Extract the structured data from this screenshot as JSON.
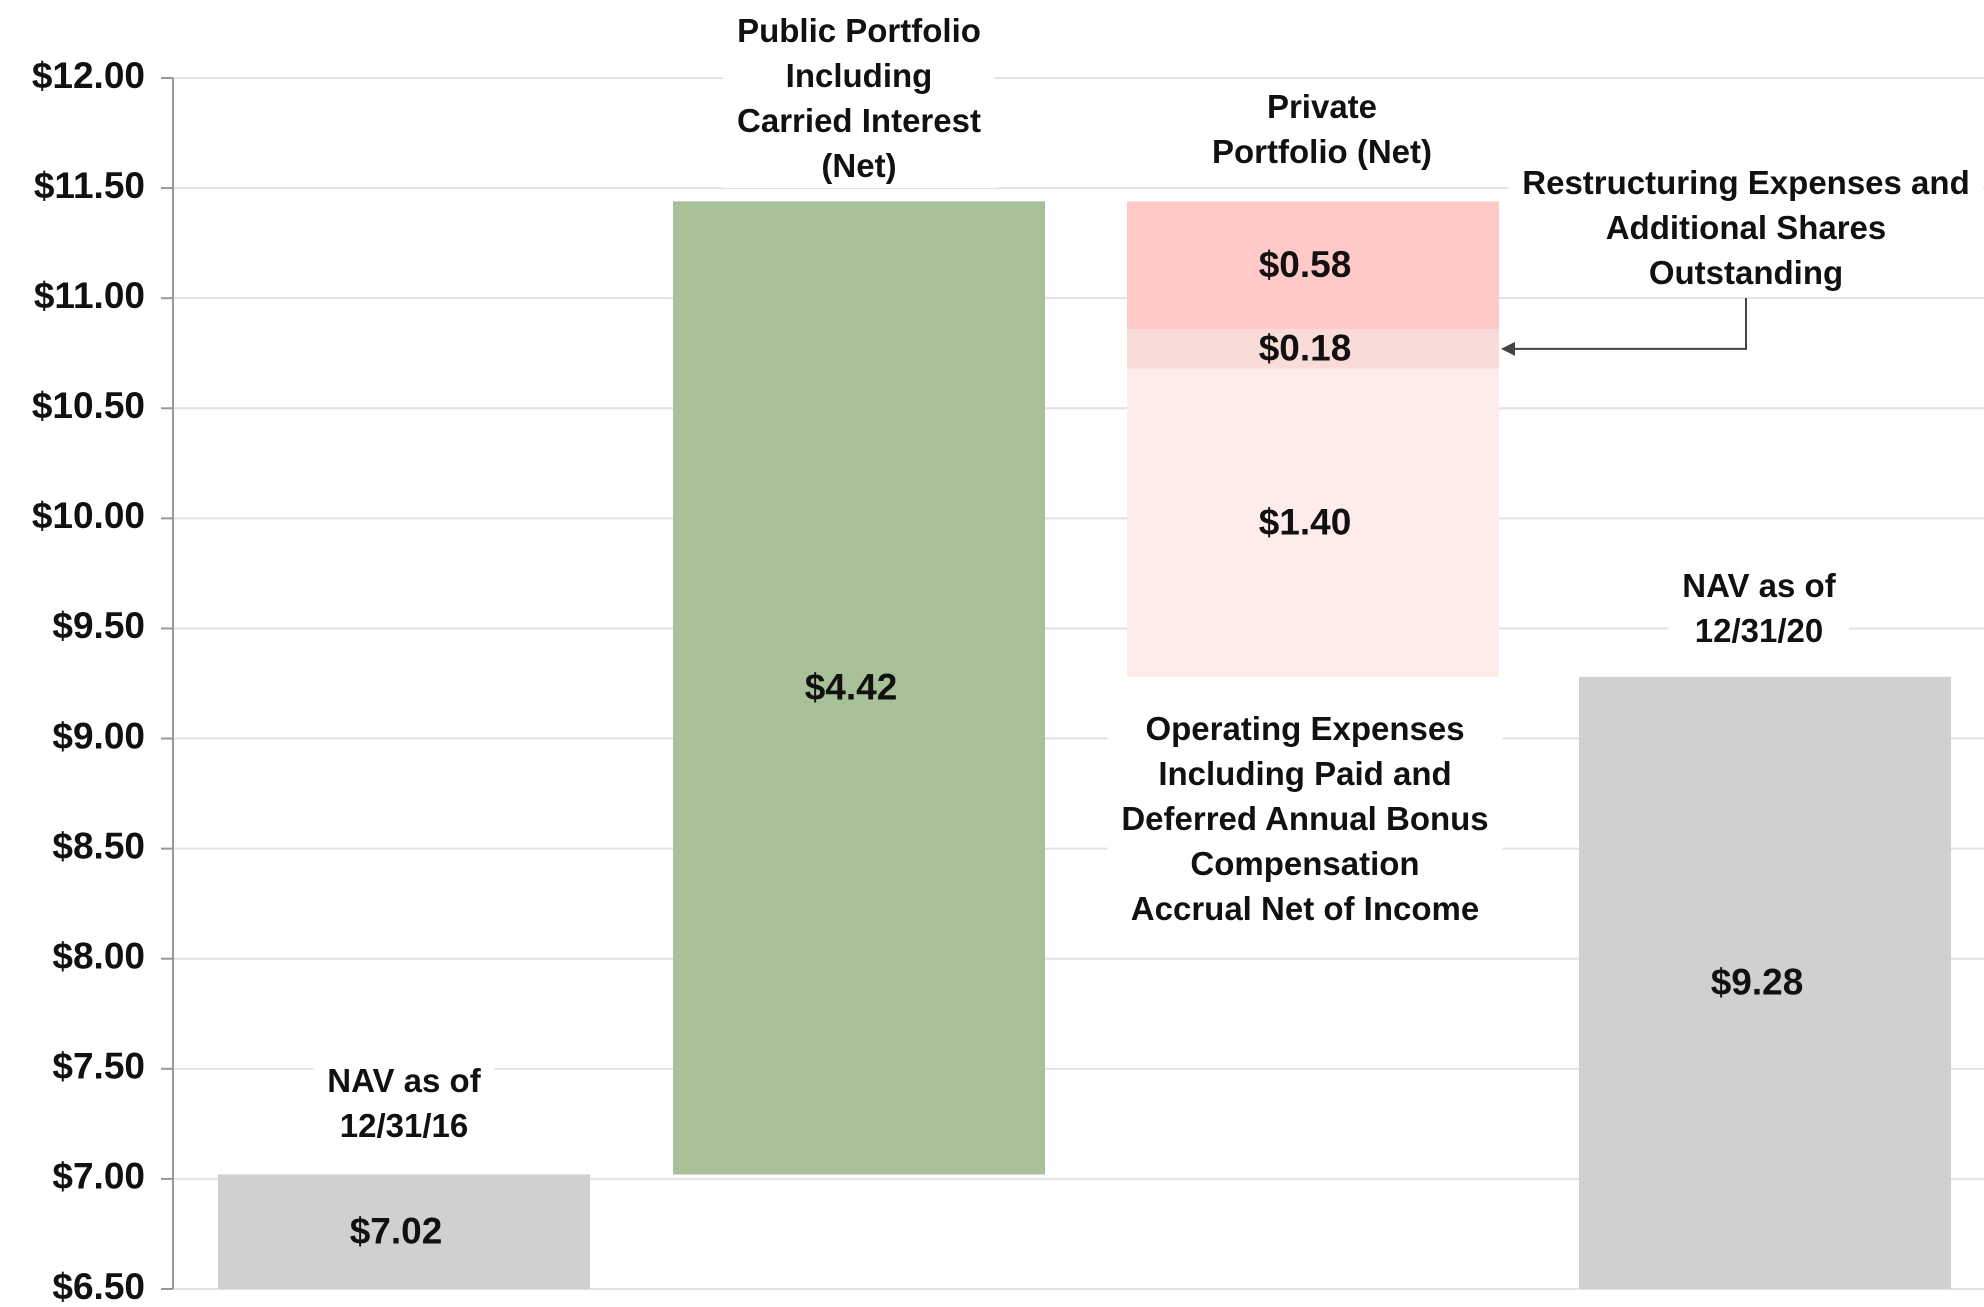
{
  "chart_data": {
    "type": "waterfall",
    "categories": [
      "NAV as of\n12/31/16",
      "Public Portfolio\nIncluding\nCarried Interest\n(Net)",
      "Private\nPortfolio (Net)",
      "Restructuring Expenses and\nAdditional Shares\nOutstanding",
      "Operating Expenses\nIncluding Paid and\nDeferred Annual Bonus\nCompensation\nAccrual Net of Income",
      "NAV as of\n12/31/20"
    ],
    "values": [
      7.02,
      4.42,
      -0.58,
      -0.18,
      -1.4,
      9.28
    ],
    "value_labels": [
      "$7.02",
      "$4.42",
      "$0.58",
      "$0.18",
      "$1.40",
      "$9.28"
    ],
    "colors": [
      "#d0d0d0",
      "#a9c199",
      "#fec9c7",
      "#f9dcd7",
      "#fdecea",
      "#d0d0d0"
    ],
    "ylim": [
      6.5,
      12
    ],
    "yticks": [
      {
        "value": 6.5,
        "label": "$6.50"
      },
      {
        "value": 7,
        "label": "$7.00"
      },
      {
        "value": 7.5,
        "label": "$7.50"
      },
      {
        "value": 8,
        "label": "$8.00"
      },
      {
        "value": 8.5,
        "label": "$8.50"
      },
      {
        "value": 9,
        "label": "$9.00"
      },
      {
        "value": 9.5,
        "label": "$9.50"
      },
      {
        "value": 10,
        "label": "$10.00"
      },
      {
        "value": 10.5,
        "label": "$10.50"
      },
      {
        "value": 11,
        "label": "$11.00"
      },
      {
        "value": 11.5,
        "label": "$11.50"
      },
      {
        "value": 12,
        "label": "$12.00"
      }
    ],
    "grid": true
  }
}
